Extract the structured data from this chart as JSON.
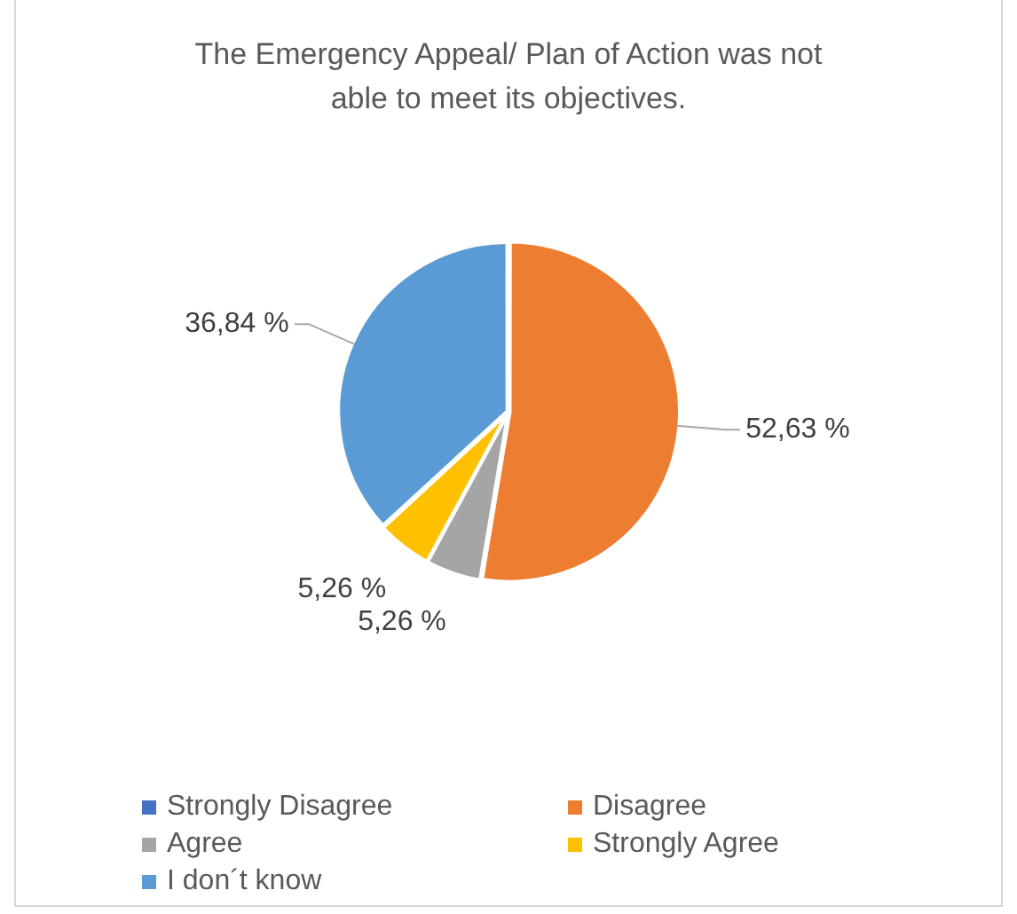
{
  "chart_data": {
    "type": "pie",
    "title": "The Emergency Appeal/ Plan of Action was not able to meet its objectives.",
    "categories": [
      "Strongly Disagree",
      "Disagree",
      "Agree",
      "Strongly Agree",
      "I don´t know"
    ],
    "values": [
      0,
      52.63,
      5.26,
      5.26,
      36.84
    ],
    "colors": [
      "#4472c4",
      "#ed7d31",
      "#a5a5a5",
      "#ffc000",
      "#5b9bd5"
    ],
    "value_labels": [
      null,
      "52,63 %",
      "5,26 %",
      "5,26 %",
      "36,84 %"
    ],
    "legend": "bottom"
  }
}
